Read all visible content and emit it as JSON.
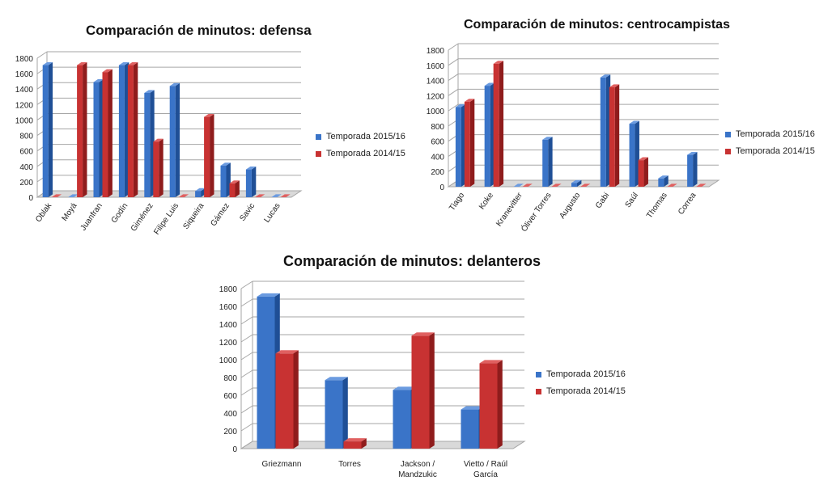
{
  "colors": {
    "series0": {
      "front": "#3a74c8",
      "light": "#6b9be0",
      "dark": "#1f4f96"
    },
    "series1": {
      "front": "#c83232",
      "light": "#e06060",
      "dark": "#8f1c1c"
    }
  },
  "chart_data": [
    {
      "type": "bar",
      "title": "Comparación de minutos:  defensa",
      "categories": [
        "Oblak",
        "Moyá",
        "Juanfran",
        "Godín",
        "Giménez",
        "Filipe Luis",
        "Siqueira",
        "Gámez",
        "Savic",
        "Lucas"
      ],
      "series": [
        {
          "name": "Temporada 2015/16",
          "values": [
            1710,
            0,
            1490,
            1710,
            1350,
            1440,
            80,
            410,
            360,
            0
          ]
        },
        {
          "name": "Temporada 2014/15",
          "values": [
            0,
            1710,
            1620,
            1710,
            720,
            0,
            1040,
            180,
            0,
            0
          ]
        }
      ],
      "yticks": [
        "0",
        "200",
        "400",
        "600",
        "800",
        "1000",
        "1200",
        "1400",
        "1600",
        "1800"
      ],
      "ylim": [
        0,
        1800
      ],
      "grid": true,
      "legend": "right"
    },
    {
      "type": "bar",
      "title": "Comparación de minutos:  centrocampistas",
      "categories": [
        "Tiago",
        "Koke",
        "Kranevitter",
        "Óliver Torres",
        "Augusto",
        "Gabi",
        "Saúl",
        "Thomas",
        "Correa"
      ],
      "series": [
        {
          "name": "Temporada 2015/16",
          "values": [
            1050,
            1330,
            0,
            620,
            50,
            1440,
            830,
            110,
            420
          ]
        },
        {
          "name": "Temporada 2014/15",
          "values": [
            1120,
            1620,
            0,
            0,
            0,
            1310,
            350,
            0,
            0
          ]
        }
      ],
      "yticks": [
        "0",
        "200",
        "400",
        "600",
        "800",
        "1000",
        "1200",
        "1400",
        "1600",
        "1800"
      ],
      "ylim": [
        0,
        1800
      ],
      "grid": true,
      "legend": "right"
    },
    {
      "type": "bar",
      "title": "Comparación de minutos:  delanteros",
      "categories": [
        "Griezmann",
        "Torres",
        "Jackson / Mandzukic",
        "Vietto / Raúl García"
      ],
      "series": [
        {
          "name": "Temporada 2015/16",
          "values": [
            1710,
            770,
            660,
            440
          ]
        },
        {
          "name": "Temporada 2014/15",
          "values": [
            1070,
            80,
            1270,
            960
          ]
        }
      ],
      "yticks": [
        "0",
        "200",
        "400",
        "600",
        "800",
        "1000",
        "1200",
        "1400",
        "1600",
        "1800"
      ],
      "ylim": [
        0,
        1800
      ],
      "grid": true,
      "legend": "right"
    }
  ]
}
